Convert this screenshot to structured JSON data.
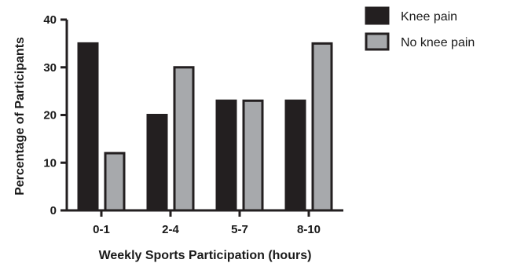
{
  "chart_data": {
    "type": "bar",
    "categories": [
      "0-1",
      "2-4",
      "5-7",
      "8-10"
    ],
    "series": [
      {
        "name": "Knee pain",
        "values": [
          35,
          20,
          23,
          23
        ],
        "color": "#231f20"
      },
      {
        "name": "No knee pain",
        "values": [
          12,
          30,
          23,
          35
        ],
        "color": "#a7a9ac"
      }
    ],
    "xlabel": "Weekly Sports Participation (hours)",
    "ylabel": "Percentage of Participants",
    "ylim": [
      0,
      40
    ],
    "yticks": [
      0,
      10,
      20,
      30,
      40
    ],
    "grid": false,
    "legend_position": "top-right",
    "stroke_color": "#231f20"
  }
}
